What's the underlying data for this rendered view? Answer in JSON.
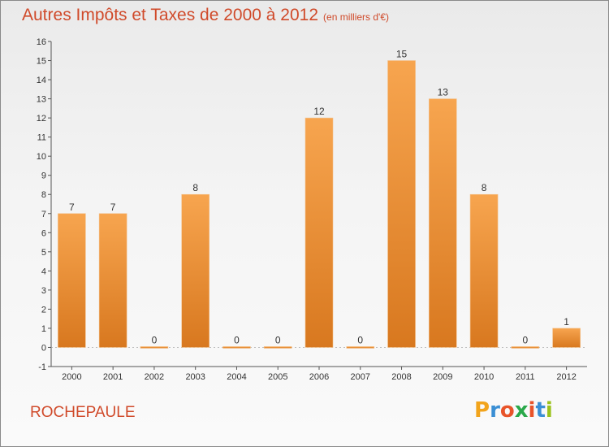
{
  "header": {
    "title": "Autres Impôts et Taxes de 2000 à 2012",
    "unit": "(en milliers d'€)"
  },
  "footer": {
    "place": "ROCHEPAULE",
    "logo_letters": [
      "P",
      "r",
      "o",
      "x",
      "i",
      "t",
      "i"
    ],
    "logo_colors": [
      "#f2a41c",
      "#3b8fd4",
      "#e8542a",
      "#2aa84a",
      "#e8542a",
      "#3b8fd4",
      "#9bc21b"
    ]
  },
  "colors": {
    "bar_light": "#f7a54f",
    "bar_dark": "#d8781f",
    "title": "#d04a2a"
  },
  "chart_data": {
    "type": "bar",
    "title": "Autres Impôts et Taxes de 2000 à 2012",
    "subtitle": "(en milliers d'€)",
    "categories": [
      "2000",
      "2001",
      "2002",
      "2003",
      "2004",
      "2005",
      "2006",
      "2007",
      "2008",
      "2009",
      "2010",
      "2011",
      "2012"
    ],
    "values": [
      7,
      7,
      0,
      8,
      0,
      0,
      12,
      0,
      15,
      13,
      8,
      0,
      1
    ],
    "data_labels": [
      "7",
      "7",
      "0",
      "8",
      "0",
      "0",
      "12",
      "0",
      "15",
      "13",
      "8",
      "0",
      "1"
    ],
    "yticks": [
      "-1",
      "0",
      "1",
      "2",
      "3",
      "4",
      "5",
      "6",
      "7",
      "8",
      "9",
      "10",
      "11",
      "12",
      "13",
      "14",
      "15",
      "16"
    ],
    "ylim": [
      -1,
      16
    ],
    "grid": false
  }
}
